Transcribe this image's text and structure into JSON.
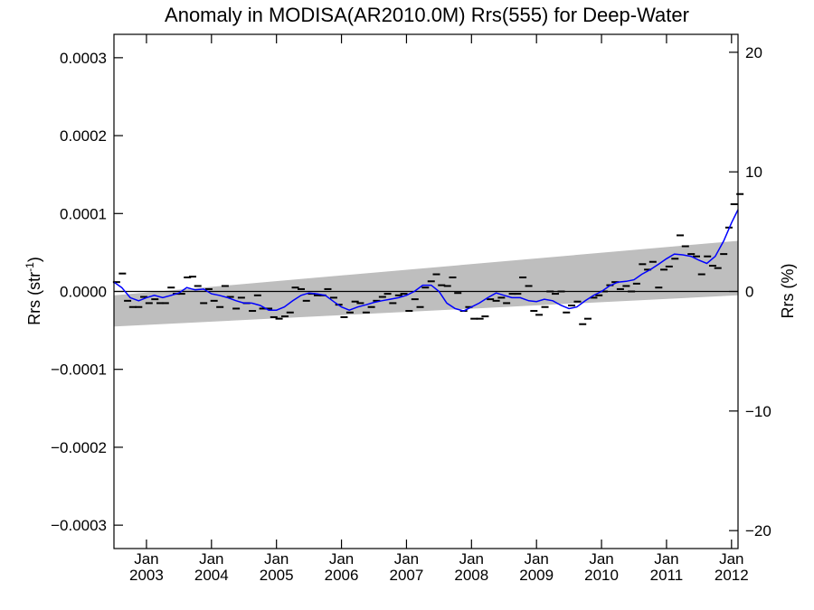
{
  "chart_data": {
    "type": "line",
    "title": "Anomaly in MODISA(AR2010.0M) Rrs(555) for Deep-Water",
    "ylabel_left": "Rrs (str",
    "ylabel_left_sup": "-1",
    "ylabel_left_close": ")",
    "ylabel_right": "Rrs (%)",
    "x_range": [
      2002.5,
      2012.1
    ],
    "ylim_left": [
      -0.00033,
      0.00033
    ],
    "ylim_right": [
      -21.5,
      21.5
    ],
    "yticks_left": [
      {
        "value": -0.0003,
        "label": "−0.0003"
      },
      {
        "value": -0.0002,
        "label": "−0.0002"
      },
      {
        "value": -0.0001,
        "label": "−0.0001"
      },
      {
        "value": 0.0,
        "label": "0.0000"
      },
      {
        "value": 0.0001,
        "label": "0.0001"
      },
      {
        "value": 0.0002,
        "label": "0.0002"
      },
      {
        "value": 0.0003,
        "label": "0.0003"
      }
    ],
    "yticks_right": [
      {
        "value": -20,
        "label": "−20"
      },
      {
        "value": -10,
        "label": "−10"
      },
      {
        "value": 0,
        "label": "0"
      },
      {
        "value": 10,
        "label": "10"
      },
      {
        "value": 20,
        "label": "20"
      }
    ],
    "xticks": [
      {
        "value": 2003.0,
        "month": "Jan",
        "year": "2003"
      },
      {
        "value": 2004.0,
        "month": "Jan",
        "year": "2004"
      },
      {
        "value": 2005.0,
        "month": "Jan",
        "year": "2005"
      },
      {
        "value": 2006.0,
        "month": "Jan",
        "year": "2006"
      },
      {
        "value": 2007.0,
        "month": "Jan",
        "year": "2007"
      },
      {
        "value": 2008.0,
        "month": "Jan",
        "year": "2008"
      },
      {
        "value": 2009.0,
        "month": "Jan",
        "year": "2009"
      },
      {
        "value": 2010.0,
        "month": "Jan",
        "year": "2010"
      },
      {
        "value": 2011.0,
        "month": "Jan",
        "year": "2011"
      },
      {
        "value": 2012.0,
        "month": "Jan",
        "year": "2012"
      }
    ],
    "zero_line": 0.0,
    "confidence_band": {
      "color": "#bebebe",
      "x": [
        2002.5,
        2012.1
      ],
      "lower": [
        -4.5e-05,
        -5e-06
      ],
      "upper": [
        -5e-06,
        6.5e-05
      ]
    },
    "monthly_anomalies": {
      "color": "#000000",
      "points": [
        [
          2002.54,
          1.2e-05
        ],
        [
          2002.63,
          2.3e-05
        ],
        [
          2002.71,
          -1.2e-05
        ],
        [
          2002.79,
          -2e-05
        ],
        [
          2002.88,
          -2e-05
        ],
        [
          2002.96,
          -7e-06
        ],
        [
          2003.04,
          -1.5e-05
        ],
        [
          2003.13,
          -1e-05
        ],
        [
          2003.21,
          -1.5e-05
        ],
        [
          2003.29,
          -1.5e-05
        ],
        [
          2003.38,
          5e-06
        ],
        [
          2003.46,
          -3e-06
        ],
        [
          2003.54,
          -3e-06
        ],
        [
          2003.63,
          1.8e-05
        ],
        [
          2003.71,
          1.9e-05
        ],
        [
          2003.79,
          7e-06
        ],
        [
          2003.88,
          -1.5e-05
        ],
        [
          2003.96,
          3e-06
        ],
        [
          2004.04,
          -1.2e-05
        ],
        [
          2004.13,
          -2e-05
        ],
        [
          2004.21,
          7e-06
        ],
        [
          2004.29,
          -7e-06
        ],
        [
          2004.38,
          -2.2e-05
        ],
        [
          2004.46,
          -8e-06
        ],
        [
          2004.54,
          -1.5e-05
        ],
        [
          2004.63,
          -2.5e-05
        ],
        [
          2004.71,
          -5e-06
        ],
        [
          2004.79,
          -2.2e-05
        ],
        [
          2004.88,
          -2.2e-05
        ],
        [
          2004.96,
          -3.3e-05
        ],
        [
          2005.04,
          -3.5e-05
        ],
        [
          2005.13,
          -3.2e-05
        ],
        [
          2005.21,
          -2.7e-05
        ],
        [
          2005.29,
          5e-06
        ],
        [
          2005.38,
          3e-06
        ],
        [
          2005.46,
          -1.2e-05
        ],
        [
          2005.54,
          -3e-06
        ],
        [
          2005.63,
          -5e-06
        ],
        [
          2005.71,
          -5e-06
        ],
        [
          2005.79,
          3e-06
        ],
        [
          2005.88,
          -8e-06
        ],
        [
          2005.96,
          -1.7e-05
        ],
        [
          2006.04,
          -3.3e-05
        ],
        [
          2006.13,
          -2.7e-05
        ],
        [
          2006.21,
          -1.3e-05
        ],
        [
          2006.29,
          -1.5e-05
        ],
        [
          2006.38,
          -2.7e-05
        ],
        [
          2006.46,
          -2e-05
        ],
        [
          2006.54,
          -1.2e-05
        ],
        [
          2006.63,
          -7e-06
        ],
        [
          2006.71,
          -3e-06
        ],
        [
          2006.79,
          -1.5e-05
        ],
        [
          2006.88,
          -5e-06
        ],
        [
          2006.96,
          -3e-06
        ],
        [
          2007.04,
          -2.5e-05
        ],
        [
          2007.13,
          -1e-05
        ],
        [
          2007.21,
          -2e-05
        ],
        [
          2007.29,
          5e-06
        ],
        [
          2007.38,
          1.3e-05
        ],
        [
          2007.46,
          2.2e-05
        ],
        [
          2007.54,
          8e-06
        ],
        [
          2007.63,
          7e-06
        ],
        [
          2007.71,
          1.8e-05
        ],
        [
          2007.79,
          -2e-06
        ],
        [
          2007.88,
          -2.5e-05
        ],
        [
          2007.96,
          -2e-05
        ],
        [
          2008.04,
          -3.5e-05
        ],
        [
          2008.13,
          -3.5e-05
        ],
        [
          2008.21,
          -3.2e-05
        ],
        [
          2008.29,
          -1e-05
        ],
        [
          2008.38,
          -1.2e-05
        ],
        [
          2008.46,
          -8e-06
        ],
        [
          2008.54,
          -1.5e-05
        ],
        [
          2008.63,
          -3e-06
        ],
        [
          2008.71,
          -3e-06
        ],
        [
          2008.79,
          1.8e-05
        ],
        [
          2008.88,
          7e-06
        ],
        [
          2008.96,
          -2.5e-05
        ],
        [
          2009.04,
          -3e-05
        ],
        [
          2009.13,
          -2e-05
        ],
        [
          2009.21,
          0.0
        ],
        [
          2009.29,
          -3e-06
        ],
        [
          2009.38,
          0.0
        ],
        [
          2009.46,
          -2.7e-05
        ],
        [
          2009.54,
          -1.8e-05
        ],
        [
          2009.63,
          -1.3e-05
        ],
        [
          2009.71,
          -4.2e-05
        ],
        [
          2009.79,
          -3.5e-05
        ],
        [
          2009.88,
          -8e-06
        ],
        [
          2009.96,
          -5e-06
        ],
        [
          2010.04,
          0.0
        ],
        [
          2010.13,
          8e-06
        ],
        [
          2010.21,
          1.2e-05
        ],
        [
          2010.29,
          3e-06
        ],
        [
          2010.38,
          7e-06
        ],
        [
          2010.46,
          0.0
        ],
        [
          2010.54,
          1e-05
        ],
        [
          2010.63,
          3.5e-05
        ],
        [
          2010.71,
          2.8e-05
        ],
        [
          2010.79,
          3.8e-05
        ],
        [
          2010.88,
          5e-06
        ],
        [
          2010.96,
          2.8e-05
        ],
        [
          2011.04,
          3.2e-05
        ],
        [
          2011.13,
          4.2e-05
        ],
        [
          2011.21,
          7.2e-05
        ],
        [
          2011.29,
          5.8e-05
        ],
        [
          2011.38,
          4.8e-05
        ],
        [
          2011.46,
          4.5e-05
        ],
        [
          2011.54,
          2.2e-05
        ],
        [
          2011.63,
          4.5e-05
        ],
        [
          2011.71,
          3.3e-05
        ],
        [
          2011.79,
          3e-05
        ],
        [
          2011.88,
          4.8e-05
        ],
        [
          2011.96,
          8.2e-05
        ],
        [
          2012.04,
          0.000112
        ],
        [
          2012.13,
          0.000125
        ]
      ]
    },
    "series": [
      {
        "color": "#0000ff",
        "values": [
          [
            2002.5,
            1.2e-05
          ],
          [
            2002.62,
            5e-06
          ],
          [
            2002.75,
            -8e-06
          ],
          [
            2002.88,
            -1.2e-05
          ],
          [
            2003.0,
            -8e-06
          ],
          [
            2003.12,
            -5e-06
          ],
          [
            2003.25,
            -8e-06
          ],
          [
            2003.38,
            -5e-06
          ],
          [
            2003.5,
            -2e-06
          ],
          [
            2003.62,
            5e-06
          ],
          [
            2003.75,
            2e-06
          ],
          [
            2003.88,
            3e-06
          ],
          [
            2004.0,
            -3e-06
          ],
          [
            2004.12,
            -5e-06
          ],
          [
            2004.25,
            -8e-06
          ],
          [
            2004.38,
            -1.2e-05
          ],
          [
            2004.5,
            -1.5e-05
          ],
          [
            2004.62,
            -1.5e-05
          ],
          [
            2004.75,
            -1.8e-05
          ],
          [
            2004.88,
            -2.4e-05
          ],
          [
            2005.0,
            -2.4e-05
          ],
          [
            2005.12,
            -2e-05
          ],
          [
            2005.25,
            -1.2e-05
          ],
          [
            2005.38,
            -5e-06
          ],
          [
            2005.5,
            -2e-06
          ],
          [
            2005.62,
            -3e-06
          ],
          [
            2005.75,
            -5e-06
          ],
          [
            2005.88,
            -1.3e-05
          ],
          [
            2006.0,
            -2e-05
          ],
          [
            2006.12,
            -2.4e-05
          ],
          [
            2006.25,
            -2e-05
          ],
          [
            2006.38,
            -1.7e-05
          ],
          [
            2006.5,
            -1.4e-05
          ],
          [
            2006.62,
            -1.2e-05
          ],
          [
            2006.75,
            -1e-05
          ],
          [
            2006.88,
            -8e-06
          ],
          [
            2007.0,
            -5e-06
          ],
          [
            2007.12,
            0.0
          ],
          [
            2007.25,
            8e-06
          ],
          [
            2007.38,
            8e-06
          ],
          [
            2007.5,
            0.0
          ],
          [
            2007.62,
            -1.5e-05
          ],
          [
            2007.75,
            -2.2e-05
          ],
          [
            2007.88,
            -2.5e-05
          ],
          [
            2008.0,
            -2e-05
          ],
          [
            2008.12,
            -1.5e-05
          ],
          [
            2008.25,
            -8e-06
          ],
          [
            2008.38,
            -2e-06
          ],
          [
            2008.5,
            -5e-06
          ],
          [
            2008.62,
            -8e-06
          ],
          [
            2008.75,
            -8e-06
          ],
          [
            2008.88,
            -1.2e-05
          ],
          [
            2009.0,
            -1.3e-05
          ],
          [
            2009.12,
            -1e-05
          ],
          [
            2009.25,
            -1.2e-05
          ],
          [
            2009.38,
            -1.8e-05
          ],
          [
            2009.5,
            -2.2e-05
          ],
          [
            2009.62,
            -2e-05
          ],
          [
            2009.75,
            -1.2e-05
          ],
          [
            2009.88,
            -5e-06
          ],
          [
            2010.0,
            0.0
          ],
          [
            2010.12,
            7e-06
          ],
          [
            2010.25,
            1.2e-05
          ],
          [
            2010.38,
            1.3e-05
          ],
          [
            2010.5,
            1.5e-05
          ],
          [
            2010.62,
            2.2e-05
          ],
          [
            2010.75,
            2.8e-05
          ],
          [
            2010.88,
            3.5e-05
          ],
          [
            2011.0,
            4.2e-05
          ],
          [
            2011.12,
            4.8e-05
          ],
          [
            2011.25,
            4.7e-05
          ],
          [
            2011.38,
            4.5e-05
          ],
          [
            2011.5,
            4e-05
          ],
          [
            2011.62,
            3.6e-05
          ],
          [
            2011.75,
            4.5e-05
          ],
          [
            2011.88,
            6.5e-05
          ],
          [
            2012.0,
            8.8e-05
          ],
          [
            2012.1,
            0.000105
          ]
        ]
      }
    ],
    "grid": false,
    "legend": "none"
  }
}
